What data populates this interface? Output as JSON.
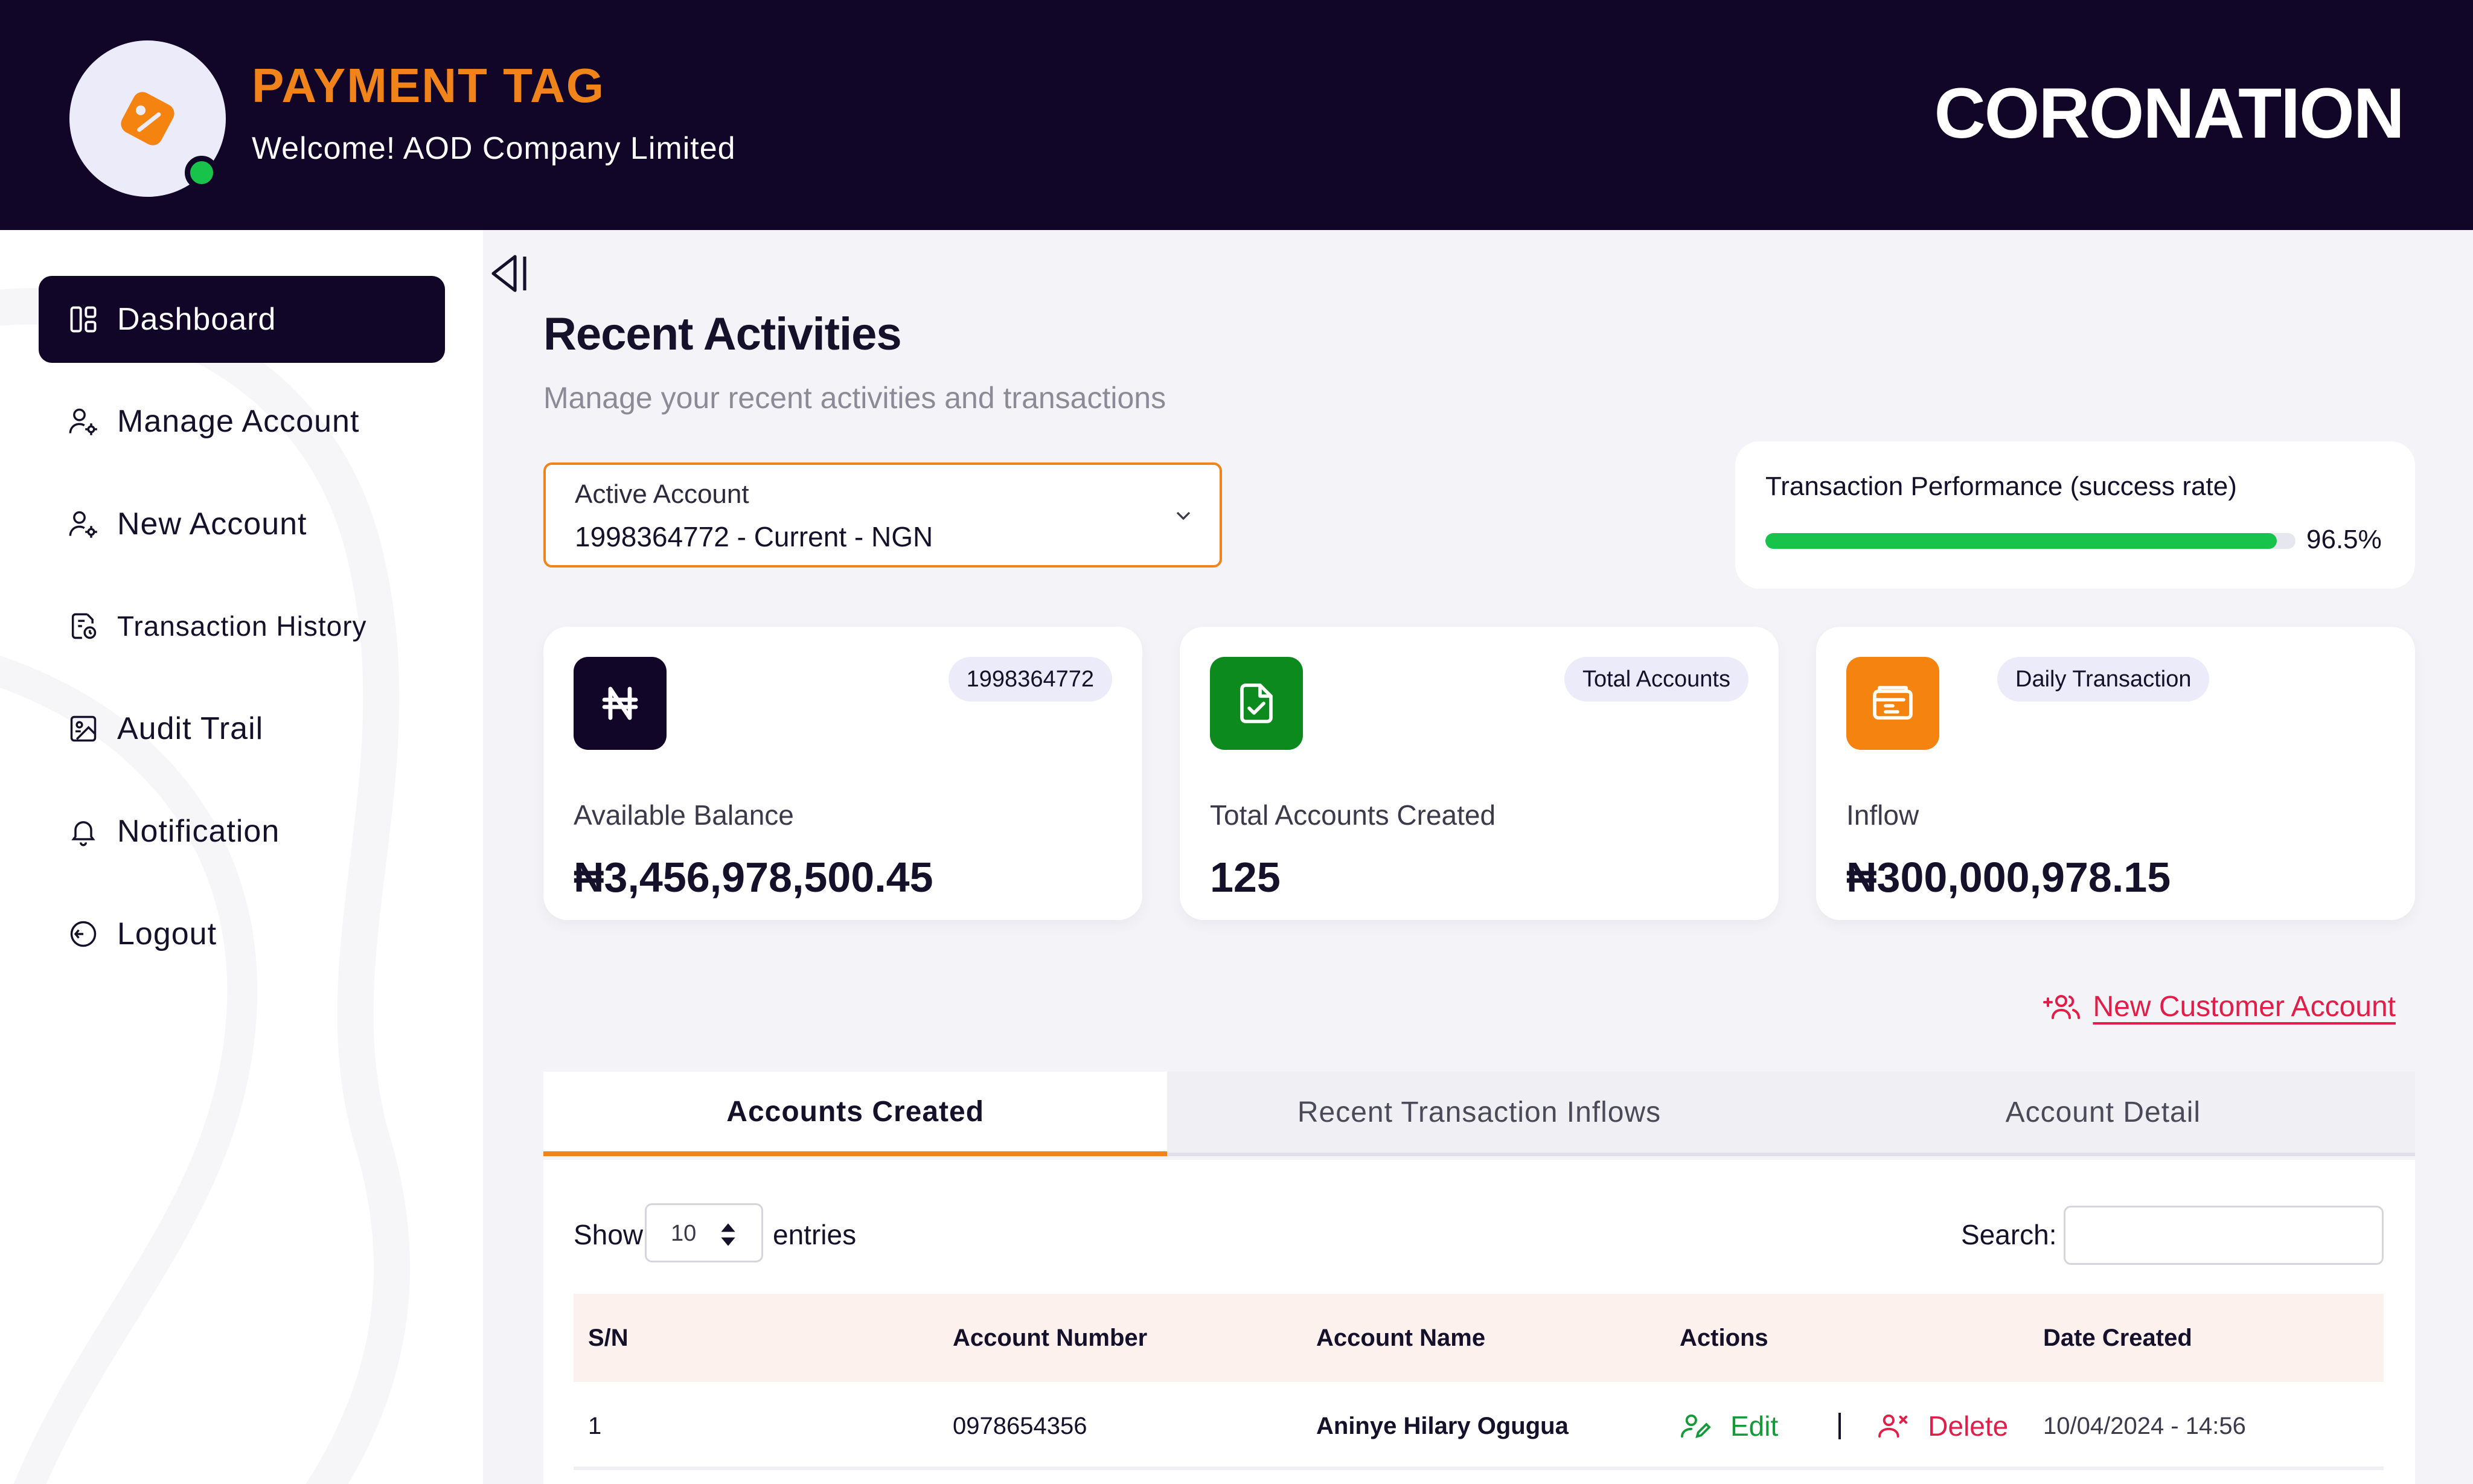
{
  "header": {
    "brand_title": "PAYMENT TAG",
    "welcome": "Welcome! AOD Company Limited",
    "bank_name": "CORONATION"
  },
  "sidebar": {
    "items": [
      {
        "label": "Dashboard",
        "icon": "dashboard-icon",
        "active": true
      },
      {
        "label": "Manage Account",
        "icon": "user-gear-icon"
      },
      {
        "label": "New Account",
        "icon": "user-gear-icon"
      },
      {
        "label": "Transaction History",
        "icon": "clock-document-icon"
      },
      {
        "label": "Audit Trail",
        "icon": "audit-image-icon"
      },
      {
        "label": "Notification",
        "icon": "bell-icon"
      },
      {
        "label": "Logout",
        "icon": "logout-icon"
      }
    ]
  },
  "main": {
    "title": "Recent Activities",
    "subtitle": "Manage your recent activities and transactions",
    "account_select": {
      "label": "Active Account",
      "value": "1998364772 - Current - NGN"
    },
    "performance": {
      "label": "Transaction Performance (success rate)",
      "value_text": "96.5%",
      "value": 0.965
    },
    "stats": [
      {
        "chip": "1998364772",
        "label": "Available Balance",
        "value": "₦3,456,978,500.45",
        "icon": "naira-icon",
        "color": "#110627"
      },
      {
        "chip": "Total Accounts",
        "label": "Total Accounts Created",
        "value": "125",
        "icon": "document-check-icon",
        "color": "#0d8a1e"
      },
      {
        "chip": "Daily Transaction",
        "label": "Inflow",
        "value": "₦300,000,978.15",
        "icon": "wallet-icon",
        "color": "#f5830f"
      }
    ],
    "new_customer_label": "New Customer Account",
    "tabs": [
      "Accounts Created",
      "Recent Transaction Inflows",
      "Account Detail"
    ],
    "table": {
      "show_label": "Show",
      "entries_value": "10",
      "entries_label": "entries",
      "search_label": "Search:",
      "search_value": "",
      "columns": [
        "S/N",
        "Account Number",
        "Account Name",
        "Actions",
        "Date Created"
      ],
      "rows": [
        {
          "sn": "1",
          "account_number": "0978654356",
          "account_name": "Aninye Hilary Ogugua",
          "edit_label": "Edit",
          "delete_label": "Delete",
          "date_created": "10/04/2024 - 14:56"
        }
      ]
    }
  },
  "colors": {
    "header_bg": "#110627",
    "accent_orange": "#f0841b",
    "success_green": "#18c34c",
    "danger_red": "#e11d48"
  }
}
